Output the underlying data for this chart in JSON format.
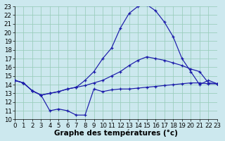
{
  "title": "Graphe des températures (°c)",
  "bg_color": "#cce8ee",
  "grid_color": "#99ccbb",
  "line_color": "#1a1aaa",
  "xlim": [
    0,
    23
  ],
  "ylim": [
    10,
    23
  ],
  "xticks": [
    0,
    1,
    2,
    3,
    4,
    5,
    6,
    7,
    8,
    9,
    10,
    11,
    12,
    13,
    14,
    15,
    16,
    17,
    18,
    19,
    20,
    21,
    22,
    23
  ],
  "yticks": [
    10,
    11,
    12,
    13,
    14,
    15,
    16,
    17,
    18,
    19,
    20,
    21,
    22,
    23
  ],
  "line_min_x": [
    0,
    1,
    2,
    3,
    4,
    5,
    6,
    7,
    8,
    9,
    10,
    11,
    12,
    13,
    14,
    15,
    16,
    17,
    18,
    19,
    20,
    21,
    22,
    23
  ],
  "line_min_y": [
    14.5,
    14.2,
    13.3,
    12.8,
    11.0,
    11.2,
    11.0,
    10.5,
    10.5,
    13.5,
    13.2,
    13.4,
    13.5,
    13.5,
    13.6,
    13.7,
    13.8,
    13.9,
    14.0,
    14.1,
    14.2,
    14.2,
    14.1,
    14.1
  ],
  "line_mid_x": [
    0,
    1,
    2,
    3,
    4,
    5,
    6,
    7,
    8,
    9,
    10,
    11,
    12,
    13,
    14,
    15,
    16,
    17,
    18,
    19,
    20,
    21,
    22,
    23
  ],
  "line_mid_y": [
    14.5,
    14.2,
    13.3,
    12.8,
    13.0,
    13.2,
    13.5,
    13.7,
    13.9,
    14.2,
    14.5,
    15.0,
    15.5,
    16.2,
    16.8,
    17.2,
    17.0,
    16.8,
    16.5,
    16.2,
    15.8,
    15.5,
    14.2,
    14.1
  ],
  "line_max_x": [
    0,
    1,
    2,
    3,
    4,
    5,
    6,
    7,
    8,
    9,
    10,
    11,
    12,
    13,
    14,
    15,
    16,
    17,
    18,
    19,
    20,
    21,
    22,
    23
  ],
  "line_max_y": [
    14.5,
    14.2,
    13.3,
    12.8,
    13.0,
    13.2,
    13.5,
    13.7,
    14.5,
    15.5,
    17.0,
    18.2,
    20.5,
    22.2,
    23.0,
    23.2,
    22.5,
    21.2,
    19.5,
    17.0,
    15.5,
    14.0,
    14.5,
    14.1
  ],
  "xlabel_fontsize": 7.5,
  "tick_fontsize": 6.2
}
